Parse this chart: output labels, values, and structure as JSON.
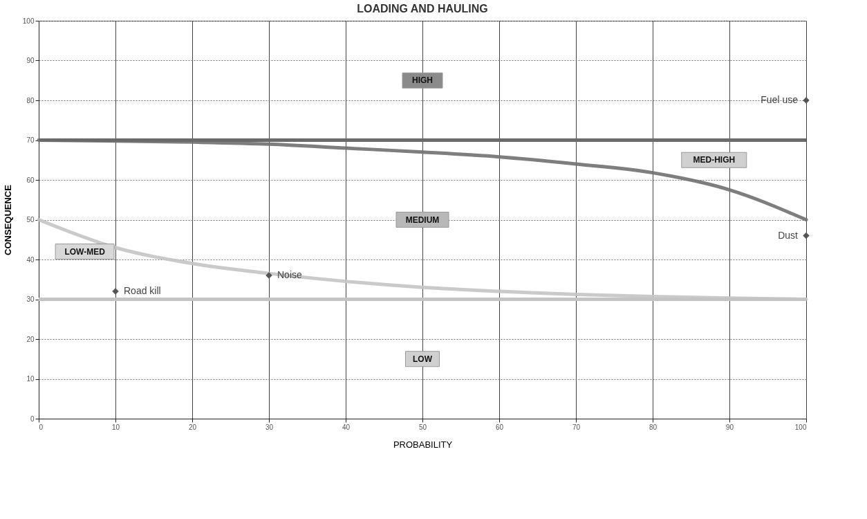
{
  "chart_data": {
    "type": "scatter",
    "title": "LOADING AND HAULING",
    "xlabel": "PROBABILITY",
    "ylabel": "CONSEQUENCE",
    "xlim": [
      0,
      100
    ],
    "ylim": [
      0,
      100
    ],
    "xticks": [
      0,
      10,
      20,
      30,
      40,
      50,
      60,
      70,
      80,
      90,
      100
    ],
    "yticks": [
      0,
      10,
      20,
      30,
      40,
      50,
      60,
      70,
      80,
      90,
      100
    ],
    "grid": true,
    "marker": "diamond",
    "series": [
      {
        "type": "line",
        "marker": "none",
        "color": "#707070",
        "x": [
          0,
          10,
          20,
          30,
          40,
          50,
          60,
          70,
          80,
          90,
          100
        ],
        "values": [
          70,
          69.8,
          69.5,
          69,
          68,
          67,
          65.8,
          64,
          61.8,
          57.5,
          50
        ]
      },
      {
        "type": "line",
        "marker": "none",
        "color": "#c4c4c4",
        "x": [
          0,
          10,
          20,
          30,
          40,
          50,
          60,
          70,
          80,
          90,
          100
        ],
        "values": [
          50,
          43,
          39,
          36.5,
          34.5,
          33,
          32,
          31.2,
          30.7,
          30.3,
          30
        ]
      },
      {
        "name": "Road kill",
        "color": "#555555",
        "x": [
          10
        ],
        "values": [
          32
        ]
      },
      {
        "name": "Noise",
        "color": "#555555",
        "x": [
          30
        ],
        "values": [
          36
        ]
      },
      {
        "name": "Fuel use",
        "color": "#555555",
        "x": [
          100
        ],
        "values": [
          80
        ]
      },
      {
        "name": "Dust",
        "color": "#555555",
        "x": [
          100
        ],
        "values": [
          46
        ]
      }
    ],
    "ref_lines": [
      {
        "axis": "y",
        "value": 70,
        "color": "#6a6a6a"
      },
      {
        "axis": "y",
        "value": 30,
        "color": "#c4c4c4"
      }
    ],
    "annotations": [
      "HIGH",
      "MED-HIGH",
      "MEDIUM",
      "LOW-MED",
      "LOW"
    ]
  }
}
